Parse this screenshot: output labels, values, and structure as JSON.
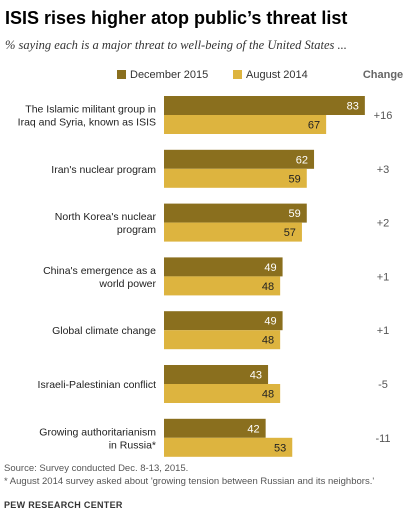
{
  "title": "ISIS rises higher atop public’s threat list",
  "subtitle": "% saying each is a major threat to well-being of the United States ...",
  "change_header": "Change",
  "colors": {
    "dec2015": "#8a6f1e",
    "aug2014": "#ddb43f"
  },
  "chart_data": {
    "type": "bar",
    "orientation": "horizontal",
    "categories": [
      [
        "The Islamic militant group in",
        "Iraq and Syria, known as ISIS"
      ],
      [
        "Iran's nuclear program"
      ],
      [
        "North Korea's nuclear",
        "program"
      ],
      [
        "China's emergence as a",
        "world power"
      ],
      [
        "Global climate change"
      ],
      [
        "Israeli-Palestinian conflict"
      ],
      [
        "Growing authoritarianism",
        "in Russia*"
      ]
    ],
    "series": [
      {
        "name": "December 2015",
        "values": [
          83,
          62,
          59,
          49,
          49,
          43,
          42
        ]
      },
      {
        "name": "August 2014",
        "values": [
          67,
          59,
          57,
          48,
          48,
          48,
          53
        ]
      }
    ],
    "change": [
      "+16",
      "+3",
      "+2",
      "+1",
      "+1",
      "-5",
      "-11"
    ],
    "legend": "top",
    "grid": false,
    "xlim": [
      0,
      100
    ]
  },
  "source": "Source: Survey conducted Dec. 8-13, 2015.",
  "footnote": "* August 2014 survey asked about 'growing tension between Russian and its neighbors.'",
  "org": "PEW RESEARCH CENTER"
}
